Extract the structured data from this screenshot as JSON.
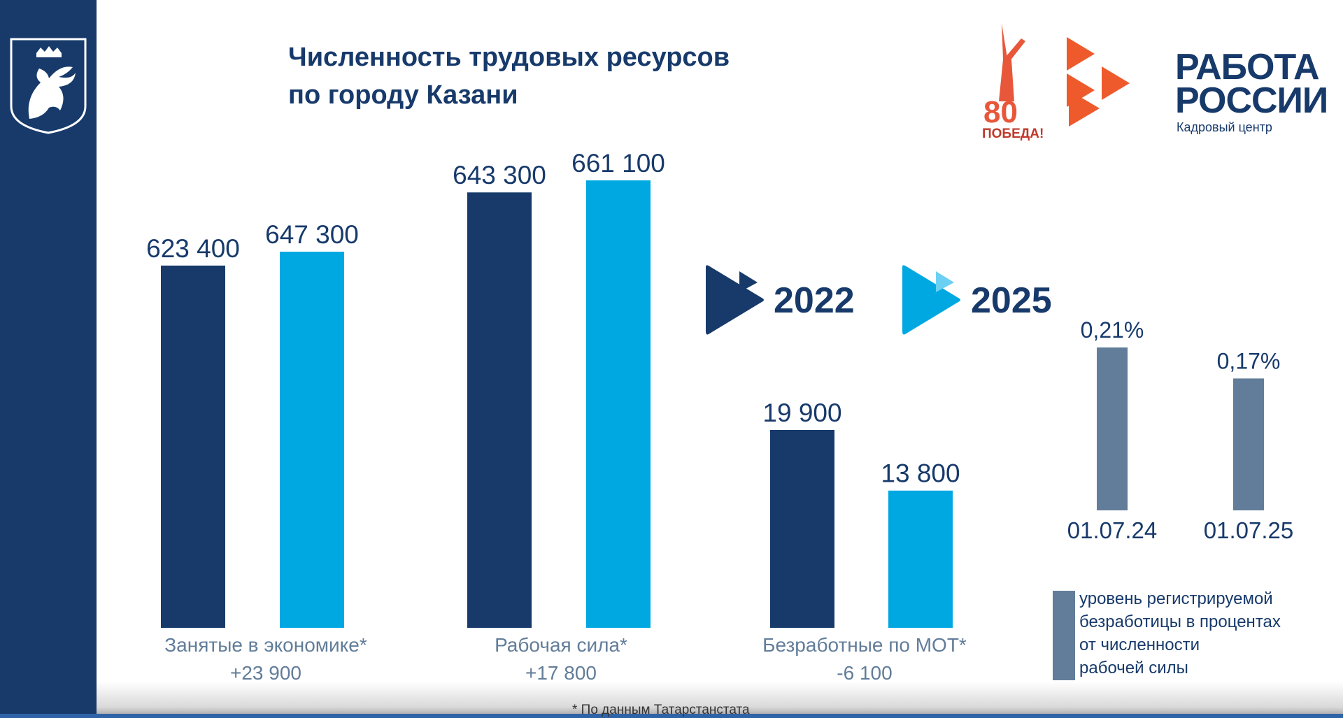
{
  "header": {
    "title_line1": "Численность трудовых ресурсов",
    "title_line2": "по городу Казани"
  },
  "logos": {
    "victory_number": "80",
    "victory_word": "ПОБЕДА!",
    "brand_line1": "РАБОТА",
    "brand_line2": "РОССИИ",
    "brand_sub": "Кадровый центр"
  },
  "colors": {
    "year_2022": "#173a6b",
    "year_2025": "#00a8e1",
    "rate": "#627d99",
    "sidebar": "#173a6b",
    "brand_orange": "#ef5a2c"
  },
  "chart_data": {
    "type": "bar",
    "legend": [
      "2022",
      "2025"
    ],
    "groups": [
      {
        "label": "Занятые в экономике*",
        "change": "+23 900",
        "values": [
          623400,
          647300
        ],
        "value_labels": [
          "623 400",
          "647 300"
        ]
      },
      {
        "label": "Рабочая сила*",
        "change": "+17 800",
        "values": [
          643300,
          661100
        ],
        "value_labels": [
          "643 300",
          "661 100"
        ]
      },
      {
        "label": "Безработные по МОТ*",
        "change": "-6 100",
        "values": [
          19900,
          13800
        ],
        "value_labels": [
          "19 900",
          "13 800"
        ]
      }
    ],
    "rate_chart": {
      "categories": [
        "01.07.24",
        "01.07.25"
      ],
      "values": [
        0.21,
        0.17
      ],
      "value_labels": [
        "0,21%",
        "0,17%"
      ],
      "legend": "уровень регистрируемой безработицы в процентах от численности рабочей силы",
      "legend_lines": [
        "уровень регистрируемой",
        "безработицы в процентах",
        "от численности",
        "рабочей силы"
      ]
    },
    "footnote": "* По данным Татарстанстата"
  }
}
